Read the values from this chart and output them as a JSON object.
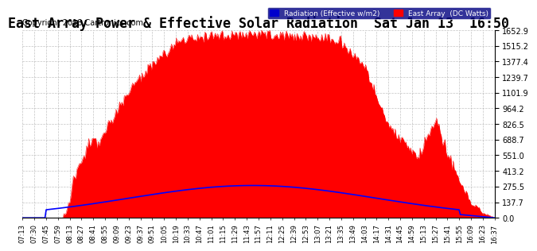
{
  "title": "East Array Power & Effective Solar Radiation  Sat Jan 13  16:50",
  "copyright": "Copyright 2018 Cartronics.com",
  "legend_blue": "Radiation (Effective w/m2)",
  "legend_red": "East Array  (DC Watts)",
  "ymax": 1652.9,
  "yticks": [
    0.0,
    137.7,
    275.5,
    413.2,
    551.0,
    688.7,
    826.5,
    964.2,
    1101.9,
    1239.7,
    1377.4,
    1515.2,
    1652.9
  ],
  "background_color": "#ffffff",
  "grid_color": "#aaaaaa",
  "red_color": "#ff0000",
  "blue_color": "#0000ff",
  "title_fontsize": 12,
  "copyright_fontsize": 7,
  "xtick_fontsize": 6,
  "ytick_fontsize": 7,
  "time_labels": [
    "07:13",
    "07:30",
    "07:45",
    "07:59",
    "08:13",
    "08:27",
    "08:41",
    "08:55",
    "09:09",
    "09:23",
    "09:37",
    "09:51",
    "10:05",
    "10:19",
    "10:33",
    "10:47",
    "11:01",
    "11:15",
    "11:29",
    "11:43",
    "11:57",
    "12:11",
    "12:25",
    "12:39",
    "12:53",
    "13:07",
    "13:21",
    "13:35",
    "13:49",
    "14:03",
    "14:17",
    "14:31",
    "14:45",
    "14:59",
    "15:13",
    "15:27",
    "15:41",
    "15:55",
    "16:09",
    "16:23",
    "16:37"
  ],
  "n_labels": 41
}
